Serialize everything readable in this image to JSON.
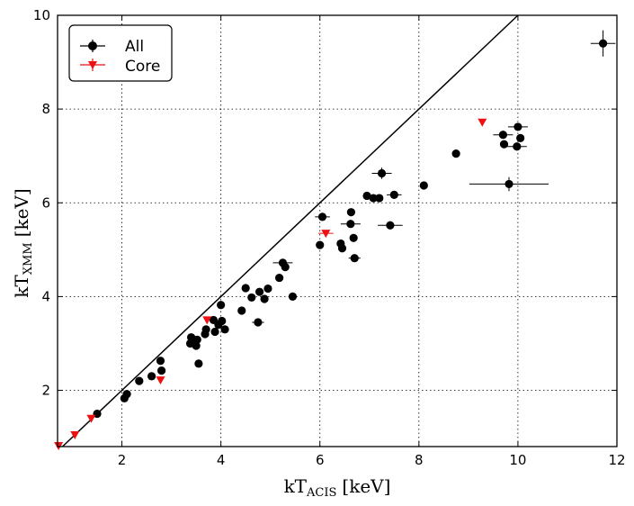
{
  "chart_data": {
    "type": "scatter",
    "title": "",
    "xlabel": {
      "main": "kT",
      "sub": "ACIS",
      "unit": "[keV]"
    },
    "ylabel": {
      "main": "kT",
      "sub": "XMM",
      "unit": "[keV]"
    },
    "xlim": [
      0.7,
      12
    ],
    "ylim": [
      0.8,
      10
    ],
    "xticks": [
      "2",
      "4",
      "6",
      "8",
      "10",
      "12"
    ],
    "yticks": [
      "2",
      "4",
      "6",
      "8",
      "10"
    ],
    "grid": true,
    "legend_position": "top-left",
    "identity_line": true,
    "series": [
      {
        "name": "All",
        "marker": "circle",
        "color": "#000000",
        "points": [
          {
            "x": 1.5,
            "y": 1.5
          },
          {
            "x": 2.05,
            "y": 1.83
          },
          {
            "x": 2.1,
            "y": 1.92
          },
          {
            "x": 2.35,
            "y": 2.2
          },
          {
            "x": 2.6,
            "y": 2.3
          },
          {
            "x": 2.8,
            "y": 2.42
          },
          {
            "x": 2.78,
            "y": 2.63
          },
          {
            "x": 3.38,
            "y": 3.0
          },
          {
            "x": 3.4,
            "y": 3.13
          },
          {
            "x": 3.5,
            "y": 2.95
          },
          {
            "x": 3.52,
            "y": 3.08
          },
          {
            "x": 3.55,
            "y": 2.57
          },
          {
            "x": 3.68,
            "y": 3.2
          },
          {
            "x": 3.7,
            "y": 3.3
          },
          {
            "x": 3.85,
            "y": 3.5
          },
          {
            "x": 3.88,
            "y": 3.25
          },
          {
            "x": 3.95,
            "y": 3.4
          },
          {
            "x": 4.0,
            "y": 3.82
          },
          {
            "x": 4.02,
            "y": 3.48
          },
          {
            "x": 4.08,
            "y": 3.3
          },
          {
            "x": 4.42,
            "y": 3.7
          },
          {
            "x": 4.5,
            "y": 4.18
          },
          {
            "x": 4.62,
            "y": 3.98
          },
          {
            "x": 4.75,
            "y": 3.45,
            "xerr": 0.12
          },
          {
            "x": 4.78,
            "y": 4.1
          },
          {
            "x": 4.88,
            "y": 3.95
          },
          {
            "x": 4.95,
            "y": 4.17
          },
          {
            "x": 5.18,
            "y": 4.4
          },
          {
            "x": 5.25,
            "y": 4.72,
            "xerr": 0.2
          },
          {
            "x": 5.3,
            "y": 4.63
          },
          {
            "x": 5.45,
            "y": 4.0
          },
          {
            "x": 6.0,
            "y": 5.1
          },
          {
            "x": 6.05,
            "y": 5.7,
            "xerr": 0.15
          },
          {
            "x": 6.42,
            "y": 5.13
          },
          {
            "x": 6.45,
            "y": 5.03
          },
          {
            "x": 6.62,
            "y": 5.55,
            "xerr": 0.2
          },
          {
            "x": 6.63,
            "y": 5.8
          },
          {
            "x": 6.68,
            "y": 5.25
          },
          {
            "x": 6.7,
            "y": 4.82,
            "xerr": 0.12
          },
          {
            "x": 6.95,
            "y": 6.15
          },
          {
            "x": 7.08,
            "y": 6.1
          },
          {
            "x": 7.2,
            "y": 6.1
          },
          {
            "x": 7.25,
            "y": 6.63,
            "xerr": 0.2,
            "yerr": 0.12
          },
          {
            "x": 7.42,
            "y": 5.52,
            "xerr": 0.25
          },
          {
            "x": 7.5,
            "y": 6.17,
            "xerr": 0.15
          },
          {
            "x": 8.1,
            "y": 6.37
          },
          {
            "x": 8.75,
            "y": 7.05
          },
          {
            "x": 9.7,
            "y": 7.45,
            "xerr": 0.2
          },
          {
            "x": 9.72,
            "y": 7.25
          },
          {
            "x": 9.82,
            "y": 6.4,
            "xerr": 0.8,
            "yerr": 0.15
          },
          {
            "x": 9.98,
            "y": 7.2,
            "xerr": 0.2
          },
          {
            "x": 10.0,
            "y": 7.62,
            "xerr": 0.2
          },
          {
            "x": 10.05,
            "y": 7.38
          },
          {
            "x": 11.72,
            "y": 9.4,
            "xerr": 0.25,
            "yerr": 0.28
          }
        ]
      },
      {
        "name": "Core",
        "marker": "triangle-down",
        "color": "#ee1111",
        "points": [
          {
            "x": 0.72,
            "y": 0.82
          },
          {
            "x": 1.05,
            "y": 1.05
          },
          {
            "x": 1.38,
            "y": 1.4
          },
          {
            "x": 2.78,
            "y": 2.22
          },
          {
            "x": 3.72,
            "y": 3.5
          },
          {
            "x": 6.12,
            "y": 5.35,
            "xerr": 0.15
          },
          {
            "x": 9.28,
            "y": 7.72
          }
        ]
      }
    ]
  }
}
